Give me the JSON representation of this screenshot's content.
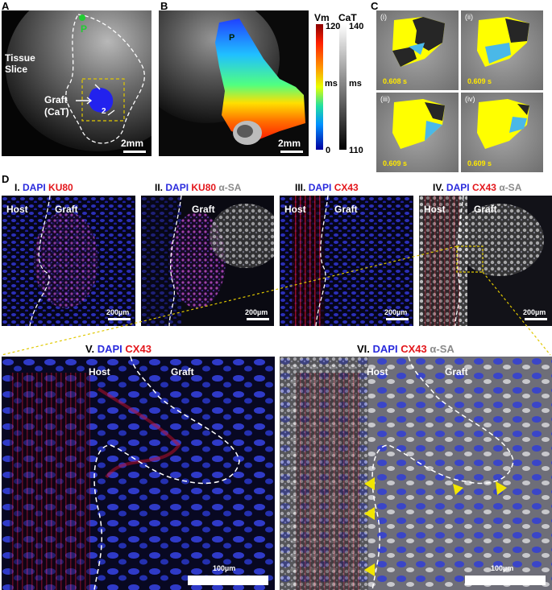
{
  "figure": {
    "panel_letters": {
      "a": "A",
      "b": "B",
      "c": "C",
      "d": "D"
    },
    "panel_a": {
      "tissue_label_line1": "Tissue",
      "tissue_label_line2": "Slice",
      "graft_label_line1": "Graft",
      "graft_label_line2": "(CaT)",
      "marker_p": "P",
      "arrow_number": "2",
      "scale_bar": "2mm"
    },
    "panel_b": {
      "marker_p": "P",
      "scale_bar": "2mm",
      "vm_title": "Vm",
      "cat_title": "CaT",
      "vm_max": "120",
      "vm_min": "0",
      "cat_max": "140",
      "cat_min": "110",
      "unit_vm": "ms",
      "unit_cat": "ms"
    },
    "panel_c": {
      "frames": [
        {
          "label": "(i)",
          "time": "0.608 s"
        },
        {
          "label": "(ii)",
          "time": "0.609 s"
        },
        {
          "label": "(iii)",
          "time": "0.609 s"
        },
        {
          "label": "(iv)",
          "time": "0.609 s"
        }
      ]
    },
    "panel_d": {
      "subpanels": [
        {
          "numeral": "I.",
          "dapi": "DAPI",
          "m2": "KU80",
          "m3": "",
          "host": "Host",
          "graft": "Graft",
          "scale": "200µm"
        },
        {
          "numeral": "II.",
          "dapi": "DAPI",
          "m2": "KU80",
          "m3": "α-SA",
          "host": "",
          "graft": "Graft",
          "scale": "200µm"
        },
        {
          "numeral": "III.",
          "dapi": "DAPI",
          "m2": "CX43",
          "m3": "",
          "host": "Host",
          "graft": "Graft",
          "scale": "200µm"
        },
        {
          "numeral": "IV.",
          "dapi": "DAPI",
          "m2": "CX43",
          "m3": "α-SA",
          "host": "Host",
          "graft": "Graft",
          "scale": "200µm"
        },
        {
          "numeral": "V.",
          "dapi": "DAPI",
          "m2": "CX43",
          "m3": "",
          "host": "Host",
          "graft": "Graft",
          "scale": "100µm"
        },
        {
          "numeral": "VI.",
          "dapi": "DAPI",
          "m2": "CX43",
          "m3": "α-SA",
          "host": "Host",
          "graft": "Graft",
          "scale": "100µm"
        }
      ]
    },
    "colors": {
      "dapi": "#2a2bdd",
      "red_marker": "#e3161b",
      "alpha_sa": "#8a8a8a",
      "zoom_box": "#e0c800",
      "arrowheads": "#f2e600"
    }
  }
}
